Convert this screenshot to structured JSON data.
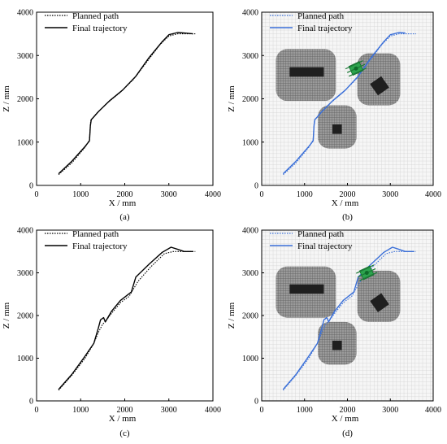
{
  "figure": {
    "panel_labels": [
      "(a)",
      "(b)",
      "(c)",
      "(d)"
    ]
  },
  "chart_data": [
    {
      "id": "a",
      "type": "line",
      "xlabel": "X / mm",
      "ylabel": "Z / mm",
      "xlim": [
        0,
        4000
      ],
      "ylim": [
        0,
        4000
      ],
      "xticks": [
        "0",
        "1000",
        "2000",
        "3000",
        "4000"
      ],
      "yticks": [
        "0",
        "1000",
        "2000",
        "3000",
        "4000"
      ],
      "grid": false,
      "legend_position": "top-left",
      "series": [
        {
          "name": "Planned path",
          "style": "dotted",
          "color": "#000000",
          "x": [
            500,
            800,
            1100,
            1200,
            1220,
            1230,
            1250,
            1350,
            1600,
            1900,
            2200,
            2500,
            2800,
            3000,
            3200,
            3400,
            3600
          ],
          "y": [
            250,
            520,
            880,
            1050,
            1400,
            1500,
            1530,
            1650,
            1900,
            2150,
            2450,
            2850,
            3250,
            3450,
            3500,
            3500,
            3500
          ]
        },
        {
          "name": "Final trajectory",
          "style": "solid",
          "color": "#000000",
          "x": [
            500,
            800,
            1100,
            1200,
            1220,
            1240,
            1280,
            1400,
            1650,
            1950,
            2250,
            2550,
            2850,
            3000,
            3200,
            3350,
            3550
          ],
          "y": [
            270,
            560,
            900,
            1030,
            1380,
            1520,
            1560,
            1700,
            1950,
            2200,
            2520,
            2950,
            3320,
            3480,
            3530,
            3520,
            3500
          ]
        }
      ]
    },
    {
      "id": "b",
      "type": "line",
      "xlabel": "X / mm",
      "ylabel": "Z / mm",
      "xlim": [
        0,
        4000
      ],
      "ylim": [
        0,
        4000
      ],
      "xticks": [
        "0",
        "1000",
        "2000",
        "3000",
        "4000"
      ],
      "yticks": [
        "0",
        "1000",
        "2000",
        "3000",
        "4000"
      ],
      "grid": true,
      "legend_position": "top-left",
      "series": [
        {
          "name": "Planned path",
          "style": "dotted",
          "color": "#3a6fd8",
          "x": [
            500,
            800,
            1100,
            1200,
            1220,
            1230,
            1250,
            1350,
            1600,
            1900,
            2200,
            2500,
            2800,
            3000,
            3200,
            3400,
            3600
          ],
          "y": [
            250,
            520,
            880,
            1050,
            1400,
            1500,
            1530,
            1650,
            1900,
            2150,
            2450,
            2850,
            3250,
            3450,
            3500,
            3500,
            3500
          ]
        },
        {
          "name": "Final trajectory",
          "style": "solid",
          "color": "#3a6fd8",
          "x": [
            500,
            800,
            1100,
            1200,
            1220,
            1240,
            1280,
            1400,
            1650,
            1950,
            2250,
            2550,
            2850,
            3000,
            3200,
            3350
          ],
          "y": [
            270,
            560,
            900,
            1030,
            1380,
            1520,
            1560,
            1700,
            1950,
            2200,
            2520,
            2950,
            3320,
            3480,
            3530,
            3520
          ]
        }
      ],
      "obstacles": [
        {
          "type": "rounded-rect",
          "x0": 330,
          "x1": 1730,
          "y0": 1950,
          "y1": 3150
        },
        {
          "type": "rounded-rect",
          "x0": 2230,
          "x1": 3230,
          "y0": 1850,
          "y1": 3050
        },
        {
          "type": "rounded-rect",
          "x0": 1310,
          "x1": 2210,
          "y0": 850,
          "y1": 1850
        }
      ],
      "obstacle_cores": [
        {
          "type": "rect",
          "cx": 1050,
          "cy": 2620,
          "w": 800,
          "h": 220,
          "angle": 0
        },
        {
          "type": "rect",
          "cx": 2750,
          "cy": 2300,
          "w": 320,
          "h": 320,
          "angle": 35
        },
        {
          "type": "rect",
          "cx": 1760,
          "cy": 1300,
          "w": 220,
          "h": 220,
          "angle": 0
        }
      ],
      "robot": {
        "x": 2200,
        "y": 2700
      }
    },
    {
      "id": "c",
      "type": "line",
      "xlabel": "X / mm",
      "ylabel": "Z / mm",
      "xlim": [
        0,
        4000
      ],
      "ylim": [
        0,
        4000
      ],
      "xticks": [
        "0",
        "1000",
        "2000",
        "3000",
        "4000"
      ],
      "yticks": [
        "0",
        "1000",
        "2000",
        "3000",
        "4000"
      ],
      "grid": false,
      "legend_position": "top-left",
      "series": [
        {
          "name": "Planned path",
          "style": "dotted",
          "color": "#000000",
          "x": [
            500,
            800,
            1100,
            1300,
            1400,
            1500,
            1550,
            1700,
            1900,
            2100,
            2300,
            2600,
            2900,
            3100,
            3300,
            3500,
            3600
          ],
          "y": [
            250,
            600,
            1000,
            1350,
            1600,
            1800,
            1850,
            2050,
            2300,
            2450,
            2800,
            3150,
            3450,
            3500,
            3500,
            3500,
            3500
          ]
        },
        {
          "name": "Final trajectory",
          "style": "solid",
          "color": "#000000",
          "x": [
            500,
            800,
            1100,
            1300,
            1400,
            1450,
            1520,
            1560,
            1700,
            1900,
            2150,
            2250,
            2550,
            2850,
            3050,
            3200,
            3350,
            3550
          ],
          "y": [
            270,
            620,
            1050,
            1350,
            1700,
            1900,
            1950,
            1850,
            2100,
            2350,
            2550,
            2900,
            3200,
            3480,
            3600,
            3550,
            3500,
            3500
          ]
        }
      ]
    },
    {
      "id": "d",
      "type": "line",
      "xlabel": "X / mm",
      "ylabel": "Z / mm",
      "xlim": [
        0,
        4000
      ],
      "ylim": [
        0,
        4000
      ],
      "xticks": [
        "0",
        "1000",
        "2000",
        "3000",
        "4000"
      ],
      "yticks": [
        "0",
        "1000",
        "2000",
        "3000",
        "4000"
      ],
      "grid": true,
      "legend_position": "top-left",
      "series": [
        {
          "name": "Planned path",
          "style": "dotted",
          "color": "#3a6fd8",
          "x": [
            500,
            800,
            1100,
            1300,
            1400,
            1500,
            1550,
            1700,
            1900,
            2100,
            2300,
            2600,
            2900,
            3100,
            3300,
            3500,
            3600
          ],
          "y": [
            250,
            600,
            1000,
            1350,
            1600,
            1800,
            1850,
            2050,
            2300,
            2450,
            2800,
            3150,
            3450,
            3500,
            3500,
            3500,
            3500
          ]
        },
        {
          "name": "Final trajectory",
          "style": "solid",
          "color": "#3a6fd8",
          "x": [
            500,
            800,
            1100,
            1300,
            1400,
            1450,
            1520,
            1560,
            1700,
            1900,
            2150,
            2250,
            2550,
            2850,
            3050,
            3200,
            3350,
            3550
          ],
          "y": [
            270,
            620,
            1050,
            1350,
            1700,
            1900,
            1950,
            1850,
            2100,
            2350,
            2550,
            2900,
            3200,
            3480,
            3600,
            3550,
            3500,
            3500
          ]
        }
      ],
      "obstacles": [
        {
          "type": "rounded-rect",
          "x0": 330,
          "x1": 1730,
          "y0": 1950,
          "y1": 3150
        },
        {
          "type": "rounded-rect",
          "x0": 2230,
          "x1": 3230,
          "y0": 1850,
          "y1": 3050
        },
        {
          "type": "rounded-rect",
          "x0": 1310,
          "x1": 2210,
          "y0": 850,
          "y1": 1850
        }
      ],
      "obstacle_cores": [
        {
          "type": "rect",
          "cx": 1050,
          "cy": 2620,
          "w": 800,
          "h": 220,
          "angle": 0
        },
        {
          "type": "rect",
          "cx": 2750,
          "cy": 2300,
          "w": 320,
          "h": 320,
          "angle": 35
        },
        {
          "type": "rect",
          "cx": 1760,
          "cy": 1300,
          "w": 220,
          "h": 220,
          "angle": 0
        }
      ],
      "robot": {
        "x": 2450,
        "y": 3000
      }
    }
  ]
}
